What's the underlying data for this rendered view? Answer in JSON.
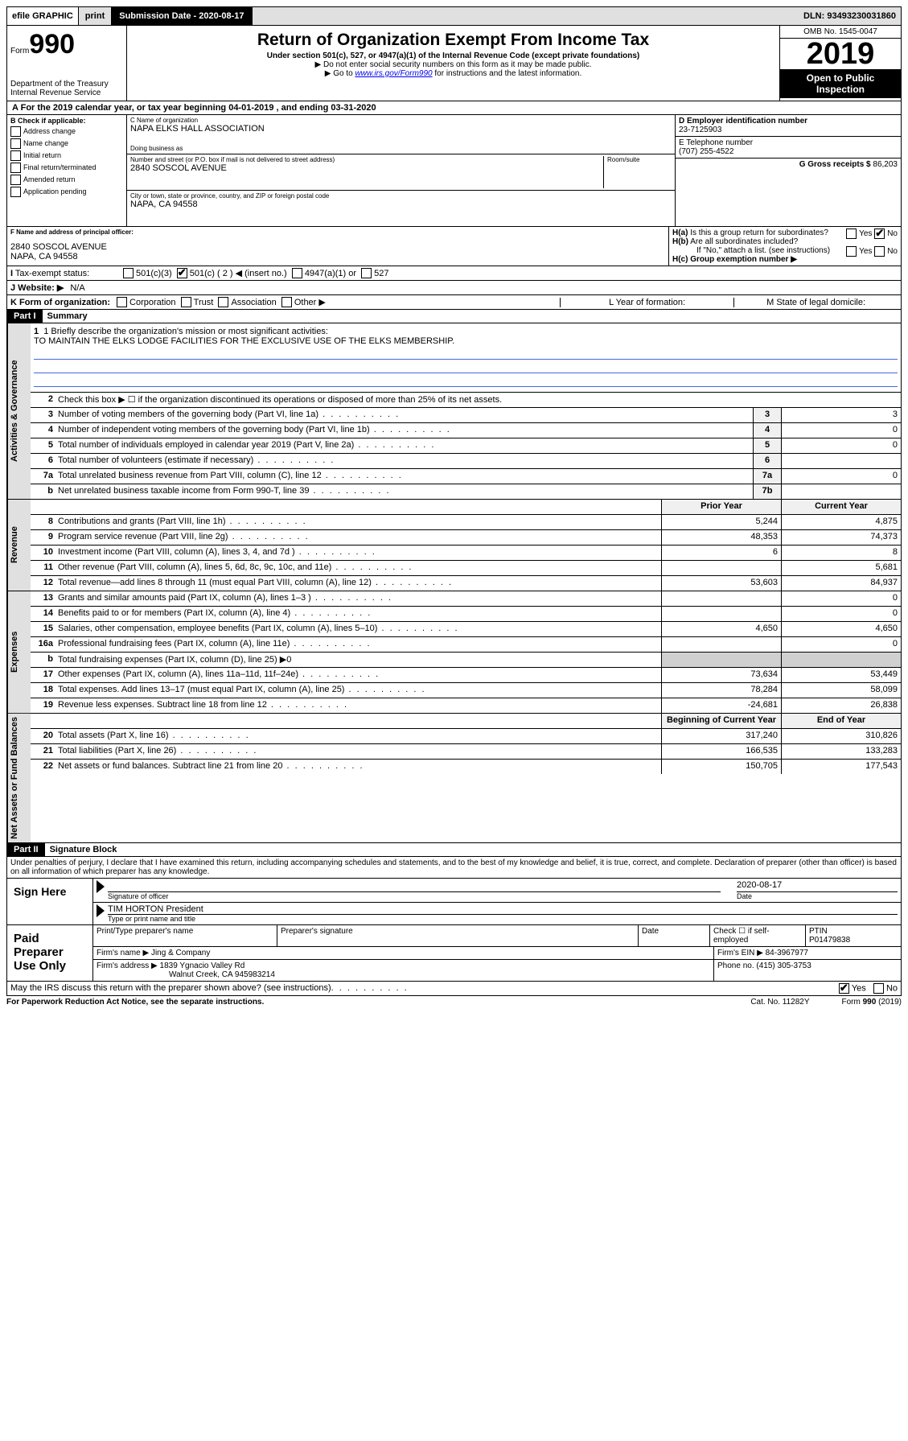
{
  "topbar": {
    "efile": "efile GRAPHIC",
    "print": "print",
    "submission": "Submission Date - 2020-08-17",
    "dln": "DLN: 93493230031860"
  },
  "header": {
    "form_prefix": "Form",
    "form_number": "990",
    "dept": "Department of the Treasury\nInternal Revenue Service",
    "title": "Return of Organization Exempt From Income Tax",
    "subtitle": "Under section 501(c), 527, or 4947(a)(1) of the Internal Revenue Code (except private foundations)",
    "note1": "▶ Do not enter social security numbers on this form as it may be made public.",
    "note2_pre": "▶ Go to ",
    "note2_link": "www.irs.gov/Form990",
    "note2_post": " for instructions and the latest information.",
    "omb": "OMB No. 1545-0047",
    "year": "2019",
    "open": "Open to Public Inspection"
  },
  "cal_year": "For the 2019 calendar year, or tax year beginning 04-01-2019   , and ending 03-31-2020",
  "box_b": {
    "title": "B Check if applicable:",
    "items": [
      "Address change",
      "Name change",
      "Initial return",
      "Final return/terminated",
      "Amended return",
      "Application pending"
    ]
  },
  "box_c": {
    "label_name": "C Name of organization",
    "name": "NAPA ELKS HALL ASSOCIATION",
    "dba_label": "Doing business as",
    "dba": "",
    "addr_label": "Number and street (or P.O. box if mail is not delivered to street address)",
    "room_label": "Room/suite",
    "addr": "2840 SOSCOL AVENUE",
    "city_label": "City or town, state or province, country, and ZIP or foreign postal code",
    "city": "NAPA, CA  94558"
  },
  "box_d": {
    "label": "D Employer identification number",
    "ein": "23-7125903",
    "tel_label": "E Telephone number",
    "tel": "(707) 255-4522",
    "gross_label": "G Gross receipts $",
    "gross": "86,203"
  },
  "box_f": {
    "label": "F  Name and address of principal officer:",
    "addr1": "2840 SOSCOL AVENUE",
    "addr2": "NAPA, CA  94558"
  },
  "box_h": {
    "ha_label": "H(a)  Is this a group return for subordinates?",
    "hb_label": "H(b)  Are all subordinates included?",
    "hb_note": "If \"No,\" attach a list. (see instructions)",
    "hc_label": "H(c)  Group exemption number ▶",
    "yes": "Yes",
    "no": "No"
  },
  "tax_status": {
    "label": "Tax-exempt status:",
    "c3": "501(c)(3)",
    "c": "501(c) ( 2 ) ◀ (insert no.)",
    "a1": "4947(a)(1) or",
    "s527": "527"
  },
  "website": {
    "label": "J   Website: ▶",
    "value": "N/A"
  },
  "form_org": {
    "label": "K Form of organization:",
    "items": [
      "Corporation",
      "Trust",
      "Association",
      "Other ▶"
    ],
    "l": "L Year of formation:",
    "m": "M State of legal domicile:"
  },
  "part1": {
    "header": "Part I",
    "title": "Summary",
    "q1_label": "1  Briefly describe the organization's mission or most significant activities:",
    "q1_text": "TO MAINTAIN THE ELKS LODGE FACILITIES FOR THE EXCLUSIVE USE OF THE ELKS MEMBERSHIP.",
    "q2": "Check this box ▶ ☐  if the organization discontinued its operations or disposed of more than 25% of its net assets.",
    "rows_gov": [
      {
        "n": "3",
        "t": "Number of voting members of the governing body (Part VI, line 1a)",
        "c": "3",
        "v": "3"
      },
      {
        "n": "4",
        "t": "Number of independent voting members of the governing body (Part VI, line 1b)",
        "c": "4",
        "v": "0"
      },
      {
        "n": "5",
        "t": "Total number of individuals employed in calendar year 2019 (Part V, line 2a)",
        "c": "5",
        "v": "0"
      },
      {
        "n": "6",
        "t": "Total number of volunteers (estimate if necessary)",
        "c": "6",
        "v": ""
      },
      {
        "n": "7a",
        "t": "Total unrelated business revenue from Part VIII, column (C), line 12",
        "c": "7a",
        "v": "0"
      },
      {
        "n": "b",
        "t": "Net unrelated business taxable income from Form 990-T, line 39",
        "c": "7b",
        "v": ""
      }
    ],
    "col_prior": "Prior Year",
    "col_current": "Current Year",
    "rows_rev": [
      {
        "n": "8",
        "t": "Contributions and grants (Part VIII, line 1h)",
        "p": "5,244",
        "c": "4,875"
      },
      {
        "n": "9",
        "t": "Program service revenue (Part VIII, line 2g)",
        "p": "48,353",
        "c": "74,373"
      },
      {
        "n": "10",
        "t": "Investment income (Part VIII, column (A), lines 3, 4, and 7d )",
        "p": "6",
        "c": "8"
      },
      {
        "n": "11",
        "t": "Other revenue (Part VIII, column (A), lines 5, 6d, 8c, 9c, 10c, and 11e)",
        "p": "",
        "c": "5,681"
      },
      {
        "n": "12",
        "t": "Total revenue—add lines 8 through 11 (must equal Part VIII, column (A), line 12)",
        "p": "53,603",
        "c": "84,937"
      }
    ],
    "rows_exp": [
      {
        "n": "13",
        "t": "Grants and similar amounts paid (Part IX, column (A), lines 1–3 )",
        "p": "",
        "c": "0"
      },
      {
        "n": "14",
        "t": "Benefits paid to or for members (Part IX, column (A), line 4)",
        "p": "",
        "c": "0"
      },
      {
        "n": "15",
        "t": "Salaries, other compensation, employee benefits (Part IX, column (A), lines 5–10)",
        "p": "4,650",
        "c": "4,650"
      },
      {
        "n": "16a",
        "t": "Professional fundraising fees (Part IX, column (A), line 11e)",
        "p": "",
        "c": "0"
      },
      {
        "n": "b",
        "t": "Total fundraising expenses (Part IX, column (D), line 25) ▶0",
        "p": "—",
        "c": "—"
      },
      {
        "n": "17",
        "t": "Other expenses (Part IX, column (A), lines 11a–11d, 11f–24e)",
        "p": "73,634",
        "c": "53,449"
      },
      {
        "n": "18",
        "t": "Total expenses. Add lines 13–17 (must equal Part IX, column (A), line 25)",
        "p": "78,284",
        "c": "58,099"
      },
      {
        "n": "19",
        "t": "Revenue less expenses. Subtract line 18 from line 12",
        "p": "-24,681",
        "c": "26,838"
      }
    ],
    "col_begin": "Beginning of Current Year",
    "col_end": "End of Year",
    "rows_net": [
      {
        "n": "20",
        "t": "Total assets (Part X, line 16)",
        "p": "317,240",
        "c": "310,826"
      },
      {
        "n": "21",
        "t": "Total liabilities (Part X, line 26)",
        "p": "166,535",
        "c": "133,283"
      },
      {
        "n": "22",
        "t": "Net assets or fund balances. Subtract line 21 from line 20",
        "p": "150,705",
        "c": "177,543"
      }
    ],
    "side_gov": "Activities & Governance",
    "side_rev": "Revenue",
    "side_exp": "Expenses",
    "side_net": "Net Assets or Fund Balances"
  },
  "part2": {
    "header": "Part II",
    "title": "Signature Block",
    "decl": "Under penalties of perjury, I declare that I have examined this return, including accompanying schedules and statements, and to the best of my knowledge and belief, it is true, correct, and complete. Declaration of preparer (other than officer) is based on all information of which preparer has any knowledge."
  },
  "sign": {
    "label": "Sign Here",
    "sig_label": "Signature of officer",
    "date_label": "Date",
    "date": "2020-08-17",
    "name": "TIM HORTON  President",
    "name_label": "Type or print name and title"
  },
  "prep": {
    "label": "Paid Preparer Use Only",
    "h_name": "Print/Type preparer's name",
    "h_sig": "Preparer's signature",
    "h_date": "Date",
    "h_check": "Check ☐ if self-employed",
    "h_ptin": "PTIN",
    "ptin": "P01479838",
    "firm_label": "Firm's name    ▶",
    "firm": "Jing & Company",
    "firm_ein_label": "Firm's EIN ▶",
    "firm_ein": "84-3967977",
    "addr_label": "Firm's address ▶",
    "addr1": "1839 Ygnacio Valley Rd",
    "addr2": "Walnut Creek, CA  945983214",
    "phone_label": "Phone no.",
    "phone": "(415) 305-3753"
  },
  "footer": {
    "q": "May the IRS discuss this return with the preparer shown above? (see instructions)",
    "yes": "Yes",
    "no": "No",
    "pra": "For Paperwork Reduction Act Notice, see the separate instructions.",
    "cat": "Cat. No. 11282Y",
    "form": "Form 990 (2019)"
  }
}
